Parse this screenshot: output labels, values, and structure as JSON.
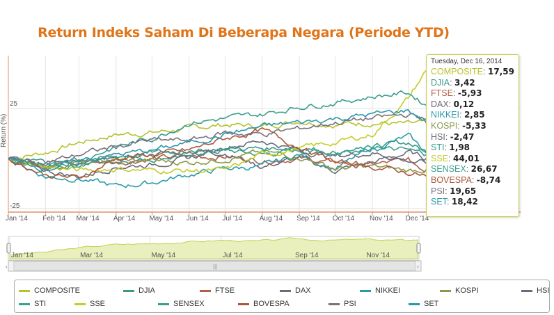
{
  "chart_data": {
    "type": "line",
    "title": "Return  Indeks Saham Di Beberapa Negara (Periode YTD)",
    "ylabel": "Return (%)",
    "ylim": [
      -25,
      50
    ],
    "yticks": [
      "25",
      "-25"
    ],
    "xticks": [
      "Jan '14",
      "Feb '14",
      "Mar '14",
      "Apr '14",
      "May '14",
      "Jun '14",
      "Jul '14",
      "Aug '14",
      "Sep '14",
      "Oct '14",
      "Nov '14",
      "Dec '14"
    ],
    "x": [
      "2014-01-01",
      "2014-02-01",
      "2014-03-01",
      "2014-04-01",
      "2014-05-01",
      "2014-06-01",
      "2014-07-01",
      "2014-08-01",
      "2014-09-01",
      "2014-10-01",
      "2014-11-01",
      "2014-12-01",
      "2014-12-16"
    ],
    "grid": true,
    "legend": "bottom",
    "series": [
      {
        "name": "COMPOSITE",
        "color": "#b5c22a",
        "values": [
          0,
          3,
          8,
          12,
          13,
          15,
          17,
          16,
          19,
          17,
          18,
          17,
          17.59
        ]
      },
      {
        "name": "DJIA",
        "color": "#3a9a86",
        "values": [
          0,
          -5,
          -3,
          -1,
          0,
          2,
          4,
          2,
          4,
          3,
          6,
          8,
          3.42
        ]
      },
      {
        "name": "FTSE",
        "color": "#b0604a",
        "values": [
          0,
          -3,
          -1,
          -2,
          0,
          1,
          1,
          -1,
          0,
          -2,
          -3,
          -1,
          -5.93
        ]
      },
      {
        "name": "DAX",
        "color": "#6e6a78",
        "values": [
          0,
          -2,
          -2,
          -1,
          2,
          4,
          3,
          -4,
          0,
          -6,
          -2,
          3,
          0.12
        ]
      },
      {
        "name": "NIKKEI",
        "color": "#2a9aaa",
        "values": [
          0,
          -9,
          -10,
          -14,
          -12,
          -8,
          -5,
          -4,
          2,
          -5,
          5,
          11,
          2.85
        ]
      },
      {
        "name": "KOSPI",
        "color": "#8a9a4a",
        "values": [
          0,
          -4,
          -2,
          -1,
          -1,
          -2,
          0,
          3,
          1,
          -5,
          -4,
          -6,
          -5.33
        ]
      },
      {
        "name": "HSI",
        "color": "#6a6a7a",
        "values": [
          0,
          -6,
          -9,
          -4,
          -3,
          0,
          6,
          9,
          4,
          1,
          3,
          -1,
          -2.47
        ]
      },
      {
        "name": "STI",
        "color": "#3aa090",
        "values": [
          0,
          -3,
          -2,
          1,
          3,
          3,
          5,
          5,
          6,
          3,
          5,
          4,
          1.98
        ]
      },
      {
        "name": "SSE",
        "color": "#c4cc28",
        "values": [
          0,
          -4,
          -6,
          -5,
          -6,
          -6,
          -6,
          2,
          5,
          8,
          12,
          30,
          44.01
        ]
      },
      {
        "name": "SENSEX",
        "color": "#3a9e8e",
        "values": [
          0,
          -3,
          -1,
          6,
          10,
          18,
          20,
          22,
          26,
          28,
          31,
          33,
          26.67
        ]
      },
      {
        "name": "BOVESPA",
        "color": "#a8583a",
        "values": [
          0,
          -8,
          -10,
          0,
          2,
          4,
          10,
          14,
          6,
          -2,
          -4,
          -7,
          -8.74
        ]
      },
      {
        "name": "PSI",
        "color": "#7a7080",
        "values": [
          0,
          -2,
          2,
          6,
          9,
          9,
          13,
          12,
          15,
          18,
          20,
          22,
          19.65
        ]
      },
      {
        "name": "SET",
        "color": "#2a98a8",
        "values": [
          0,
          -5,
          -1,
          2,
          4,
          8,
          12,
          16,
          18,
          20,
          22,
          24,
          18.42
        ]
      }
    ],
    "navigator": {
      "xticks": [
        "Jan '14",
        "Mar '14",
        "May '14",
        "Jul '14",
        "Sep '14",
        "Nov '14"
      ]
    }
  },
  "tooltip": {
    "date": "Tuesday, Dec 16, 2014",
    "rows": [
      {
        "name": "COMPOSITE",
        "value": "17,59"
      },
      {
        "name": "DJIA",
        "value": "3,42"
      },
      {
        "name": "FTSE",
        "value": "-5,93"
      },
      {
        "name": "DAX",
        "value": "0,12"
      },
      {
        "name": "NIKKEI",
        "value": "2,85"
      },
      {
        "name": "KOSPI",
        "value": "-5,33"
      },
      {
        "name": "HSI",
        "value": "-2,47"
      },
      {
        "name": "STI",
        "value": "1,98"
      },
      {
        "name": "SSE",
        "value": "44,01"
      },
      {
        "name": "SENSEX",
        "value": "26,67"
      },
      {
        "name": "BOVESPA",
        "value": "-8,74"
      },
      {
        "name": "PSI",
        "value": "19,65"
      },
      {
        "name": "SET",
        "value": "18,42"
      }
    ]
  }
}
